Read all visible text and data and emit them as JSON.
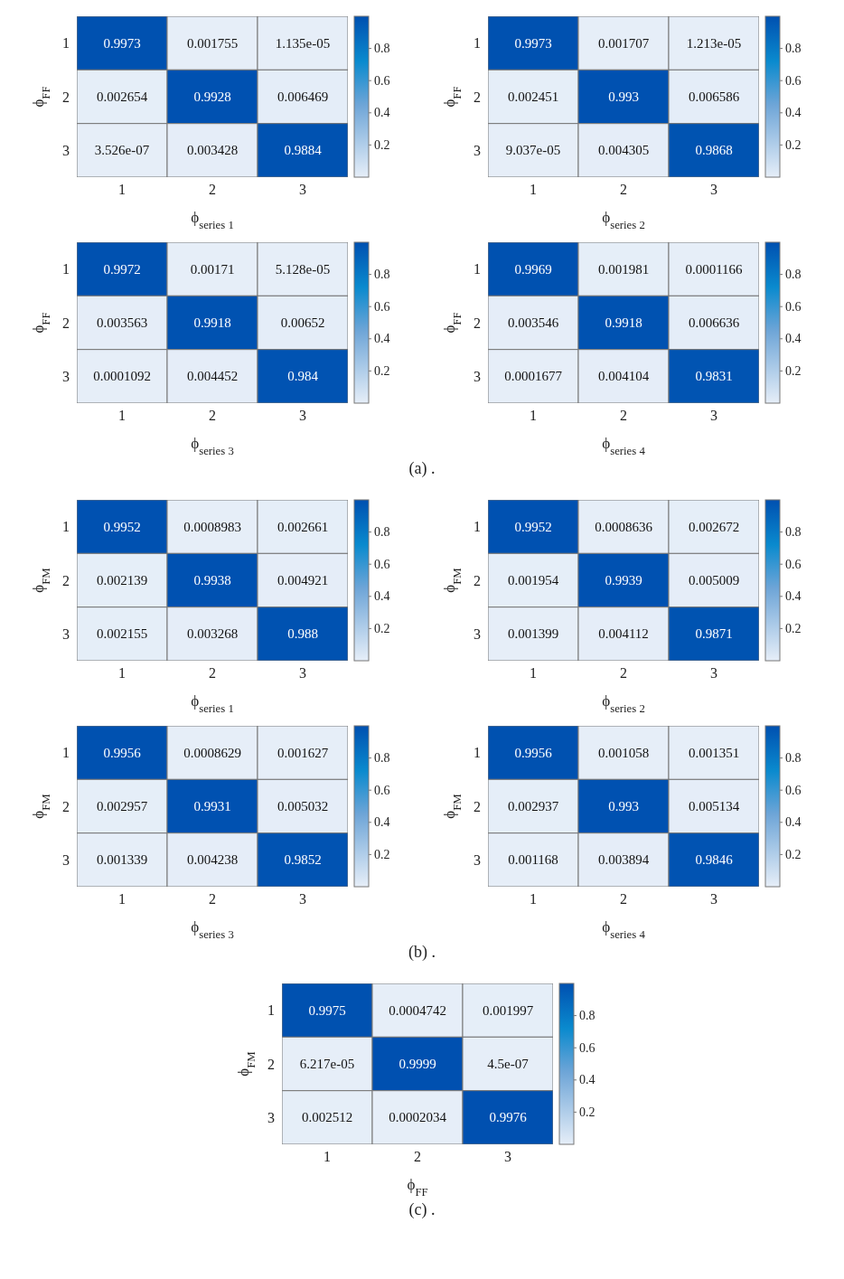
{
  "chart_data": [
    {
      "type": "heatmap",
      "xlabel": "ϕ$_{series 1}$",
      "ylabel": "ϕ$_{FF}$",
      "categories": [
        "1",
        "2",
        "3"
      ],
      "y_categories": [
        "1",
        "2",
        "3"
      ],
      "cells": [
        [
          0.9973,
          0.001755,
          1.135e-05
        ],
        [
          0.002654,
          0.9928,
          0.006469
        ],
        [
          3.526e-07,
          0.003428,
          0.9884
        ]
      ],
      "clim": [
        0,
        1
      ],
      "cticks": [
        0.2,
        0.4,
        0.6,
        0.8
      ],
      "data_labels": true
    },
    {
      "type": "heatmap",
      "xlabel": "ϕ$_{series 2}$",
      "ylabel": "ϕ$_{FF}$",
      "categories": [
        "1",
        "2",
        "3"
      ],
      "y_categories": [
        "1",
        "2",
        "3"
      ],
      "cells": [
        [
          0.9973,
          0.001707,
          1.213e-05
        ],
        [
          0.002451,
          0.993,
          0.006586
        ],
        [
          9.037e-05,
          0.004305,
          0.9868
        ]
      ],
      "clim": [
        0,
        1
      ],
      "cticks": [
        0.2,
        0.4,
        0.6,
        0.8
      ],
      "data_labels": true
    },
    {
      "type": "heatmap",
      "xlabel": "ϕ$_{series 3}$",
      "ylabel": "ϕ$_{FF}$",
      "categories": [
        "1",
        "2",
        "3"
      ],
      "y_categories": [
        "1",
        "2",
        "3"
      ],
      "cells": [
        [
          0.9972,
          0.00171,
          5.128e-05
        ],
        [
          0.003563,
          0.9918,
          0.00652
        ],
        [
          0.0001092,
          0.004452,
          0.984
        ]
      ],
      "clim": [
        0,
        1
      ],
      "cticks": [
        0.2,
        0.4,
        0.6,
        0.8
      ],
      "data_labels": true
    },
    {
      "type": "heatmap",
      "xlabel": "ϕ$_{series 4}$",
      "ylabel": "ϕ$_{FF}$",
      "categories": [
        "1",
        "2",
        "3"
      ],
      "y_categories": [
        "1",
        "2",
        "3"
      ],
      "cells": [
        [
          0.9969,
          0.001981,
          0.0001166
        ],
        [
          0.003546,
          0.9918,
          0.006636
        ],
        [
          0.0001677,
          0.004104,
          0.9831
        ]
      ],
      "clim": [
        0,
        1
      ],
      "cticks": [
        0.2,
        0.4,
        0.6,
        0.8
      ],
      "data_labels": true,
      "annotations": [
        "(a) ."
      ]
    },
    {
      "type": "heatmap",
      "xlabel": "ϕ$_{series 1}$",
      "ylabel": "ϕ$_{FM}$",
      "categories": [
        "1",
        "2",
        "3"
      ],
      "y_categories": [
        "1",
        "2",
        "3"
      ],
      "cells": [
        [
          0.9952,
          0.0008983,
          0.002661
        ],
        [
          0.002139,
          0.9938,
          0.004921
        ],
        [
          0.002155,
          0.003268,
          0.988
        ]
      ],
      "clim": [
        0,
        1
      ],
      "cticks": [
        0.2,
        0.4,
        0.6,
        0.8
      ],
      "data_labels": true
    },
    {
      "type": "heatmap",
      "xlabel": "ϕ$_{series 2}$",
      "ylabel": "ϕ$_{FM}$",
      "categories": [
        "1",
        "2",
        "3"
      ],
      "y_categories": [
        "1",
        "2",
        "3"
      ],
      "cells": [
        [
          0.9952,
          0.0008636,
          0.002672
        ],
        [
          0.001954,
          0.9939,
          0.005009
        ],
        [
          0.001399,
          0.004112,
          0.9871
        ]
      ],
      "clim": [
        0,
        1
      ],
      "cticks": [
        0.2,
        0.4,
        0.6,
        0.8
      ],
      "data_labels": true
    },
    {
      "type": "heatmap",
      "xlabel": "ϕ$_{series 3}$",
      "ylabel": "ϕ$_{FM}$",
      "categories": [
        "1",
        "2",
        "3"
      ],
      "y_categories": [
        "1",
        "2",
        "3"
      ],
      "cells": [
        [
          0.9956,
          0.0008629,
          0.001627
        ],
        [
          0.002957,
          0.9931,
          0.005032
        ],
        [
          0.001339,
          0.004238,
          0.9852
        ]
      ],
      "clim": [
        0,
        1
      ],
      "cticks": [
        0.2,
        0.4,
        0.6,
        0.8
      ],
      "data_labels": true
    },
    {
      "type": "heatmap",
      "xlabel": "ϕ$_{series 4}$",
      "ylabel": "ϕ$_{FM}$",
      "categories": [
        "1",
        "2",
        "3"
      ],
      "y_categories": [
        "1",
        "2",
        "3"
      ],
      "cells": [
        [
          0.9956,
          0.001058,
          0.001351
        ],
        [
          0.002937,
          0.993,
          0.005134
        ],
        [
          0.001168,
          0.003894,
          0.9846
        ]
      ],
      "clim": [
        0,
        1
      ],
      "cticks": [
        0.2,
        0.4,
        0.6,
        0.8
      ],
      "data_labels": true,
      "annotations": [
        "(b) ."
      ]
    },
    {
      "type": "heatmap",
      "xlabel": "ϕ$_{FF}$",
      "ylabel": "ϕ$_{FM}$",
      "categories": [
        "1",
        "2",
        "3"
      ],
      "y_categories": [
        "1",
        "2",
        "3"
      ],
      "cells": [
        [
          0.9975,
          0.0004742,
          0.001997
        ],
        [
          6.217e-05,
          0.9999,
          4.5e-07
        ],
        [
          0.002512,
          0.0002034,
          0.9976
        ]
      ],
      "clim": [
        0,
        1
      ],
      "cticks": [
        0.2,
        0.4,
        0.6,
        0.8
      ],
      "data_labels": true,
      "annotations": [
        "(c) ."
      ]
    }
  ]
}
